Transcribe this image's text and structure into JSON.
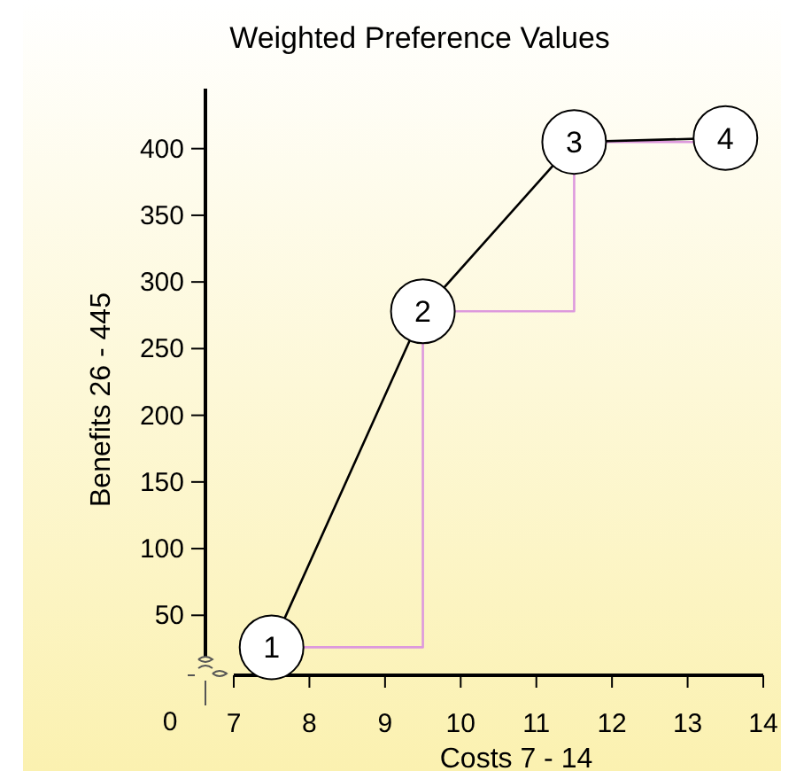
{
  "chart_data": {
    "type": "line",
    "title": "Weighted Preference Values",
    "xlabel": "Costs 7 - 14",
    "ylabel": "Benefits 26 - 445",
    "x": [
      7.5,
      9.5,
      11.5,
      13.5
    ],
    "series": [
      {
        "type": "step",
        "color": "#dd99dd",
        "values": [
          26,
          278,
          405,
          408
        ],
        "marker": "none"
      },
      {
        "color": "#000000",
        "values": [
          26,
          278,
          405,
          408
        ],
        "marker": "circle"
      }
    ],
    "xlim": [
      7,
      14
    ],
    "ylim": [
      5,
      445
    ],
    "xticks": [
      7,
      8,
      9,
      10,
      11,
      12,
      13,
      14
    ],
    "yticks": [
      50,
      100,
      150,
      200,
      250,
      300,
      350,
      400
    ],
    "annotations": [
      "0",
      {
        "text": "1",
        "x": 7.5,
        "y": 26
      },
      {
        "text": "2",
        "x": 9.5,
        "y": 278
      },
      {
        "text": "3",
        "x": 11.5,
        "y": 405
      },
      {
        "text": "4",
        "x": 13.5,
        "y": 408
      }
    ],
    "grid": false
  }
}
